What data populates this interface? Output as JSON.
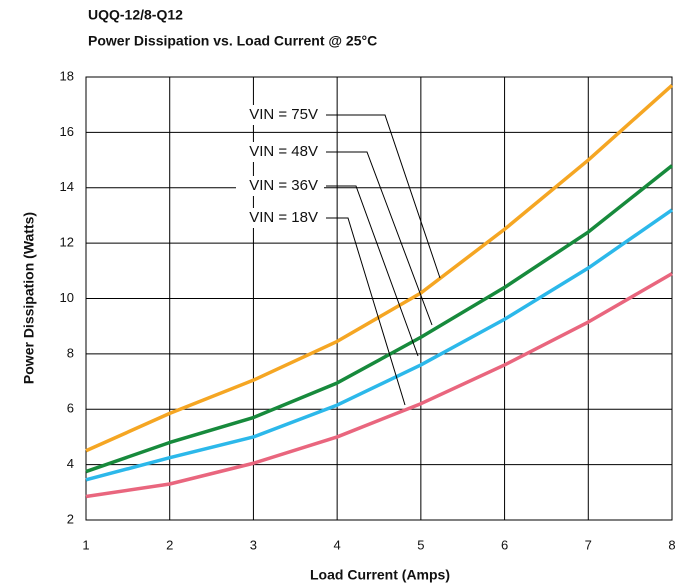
{
  "chart_data": {
    "type": "line",
    "title": "UQQ-12/8-Q12",
    "subtitle": "Power Dissipation vs. Load Current @ 25°C",
    "x_label": "Load Current (Amps)",
    "y_label": "Power Dissipation (Watts)",
    "x": [
      1,
      2,
      3,
      4,
      5,
      6,
      7,
      8
    ],
    "series": [
      {
        "name": "VIN = 75V",
        "color": "#f5a623",
        "values": [
          4.5,
          5.85,
          7.05,
          8.45,
          10.2,
          12.5,
          15.0,
          17.7
        ]
      },
      {
        "name": "VIN = 48V",
        "color": "#178a3c",
        "values": [
          3.75,
          4.8,
          5.7,
          6.95,
          8.6,
          10.4,
          12.4,
          14.8
        ]
      },
      {
        "name": "VIN = 36V",
        "color": "#2cb8ea",
        "values": [
          3.45,
          4.25,
          5.0,
          6.15,
          7.6,
          9.25,
          11.1,
          13.2
        ]
      },
      {
        "name": "VIN = 18V",
        "color": "#e9667e",
        "values": [
          2.85,
          3.3,
          4.05,
          5.0,
          6.2,
          7.6,
          9.15,
          10.9
        ]
      }
    ],
    "xlim": [
      1,
      8
    ],
    "xticks": [
      1,
      2,
      3,
      4,
      5,
      6,
      7,
      8
    ],
    "ylim": [
      2,
      18
    ],
    "yticks": [
      2,
      4,
      6,
      8,
      10,
      12,
      14,
      16,
      18
    ],
    "grid": true
  }
}
